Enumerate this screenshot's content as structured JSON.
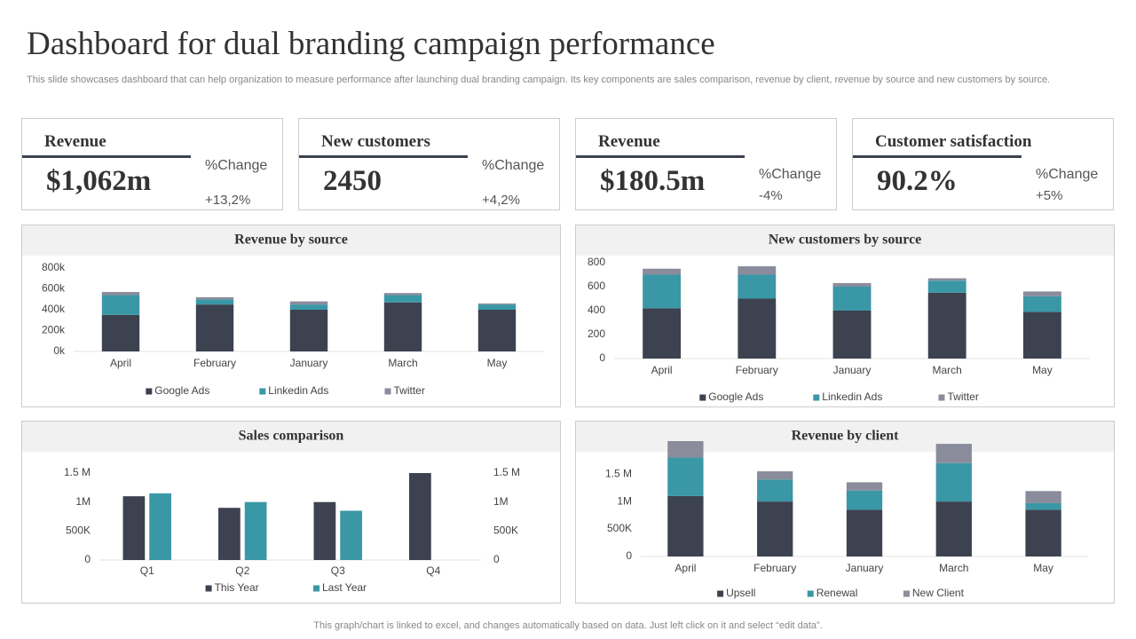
{
  "header": {
    "title": "Dashboard for dual branding campaign performance",
    "subtitle": "This slide showcases dashboard that can help organization to measure performance after launching dual branding campaign. Its key components are sales comparison, revenue by client, revenue by source and new customers by source."
  },
  "cards": [
    {
      "label": "Revenue",
      "value": "$1,062m",
      "change_label": "%Change",
      "change": "+13,2%"
    },
    {
      "label": "New customers",
      "value": "2450",
      "change_label": "%Change",
      "change": "+4,2%"
    },
    {
      "label": "Revenue",
      "value": "$180.5m",
      "change_label": "%Change",
      "change": "-4%"
    },
    {
      "label": "Customer satisfaction",
      "value": "90.2%",
      "change_label": "%Change",
      "change": "+5%"
    }
  ],
  "chart_data": [
    {
      "type": "bar",
      "stacked": true,
      "title": "Revenue by source",
      "categories": [
        "April",
        "February",
        "January",
        "March",
        "May"
      ],
      "series": [
        {
          "name": "Google Ads",
          "color": "#3d4250",
          "values": [
            350000,
            450000,
            400000,
            470000,
            400000
          ]
        },
        {
          "name": "Linkedin Ads",
          "color": "#3a97a6",
          "values": [
            190000,
            50000,
            50000,
            70000,
            50000
          ]
        },
        {
          "name": "Twitter",
          "color": "#8a8c9c",
          "values": [
            30000,
            20000,
            30000,
            20000,
            10000
          ]
        }
      ],
      "ylim": [
        0,
        800000
      ],
      "yticks": [
        {
          "value": 0,
          "label": "0k"
        },
        {
          "value": 200000,
          "label": "200k"
        },
        {
          "value": 400000,
          "label": "400k"
        },
        {
          "value": 600000,
          "label": "600k"
        },
        {
          "value": 800000,
          "label": "800k"
        }
      ]
    },
    {
      "type": "bar",
      "stacked": true,
      "title": "New customers by source",
      "categories": [
        "April",
        "February",
        "January",
        "March",
        "May"
      ],
      "series": [
        {
          "name": "Google Ads",
          "color": "#3d4250",
          "values": [
            420,
            500,
            400,
            550,
            390
          ]
        },
        {
          "name": "Linkedin Ads",
          "color": "#3a97a6",
          "values": [
            280,
            200,
            200,
            100,
            130
          ]
        },
        {
          "name": "Twitter",
          "color": "#8a8c9c",
          "values": [
            50,
            70,
            30,
            20,
            40
          ]
        }
      ],
      "ylim": [
        0,
        800
      ],
      "yticks": [
        0,
        200,
        400,
        600,
        800
      ]
    },
    {
      "type": "bar",
      "stacked": false,
      "title": "Sales comparison",
      "categories": [
        "Q1",
        "Q2",
        "Q3",
        "Q4"
      ],
      "series": [
        {
          "name": "This Year",
          "color": "#3d4250",
          "values": [
            1100000,
            900000,
            1000000,
            1500000
          ]
        },
        {
          "name": "Last Year",
          "color": "#3a97a6",
          "axis": "y2",
          "values": [
            1150000,
            1000000,
            850000,
            null
          ]
        }
      ],
      "ylim": [
        0,
        1600000
      ],
      "yticks": [
        0,
        {
          "value": 500000,
          "label": "500K"
        },
        {
          "value": 1000000,
          "label": "1M"
        },
        {
          "value": 1500000,
          "label": "1.5 M"
        }
      ],
      "y2lim": [
        0,
        1600000
      ],
      "y2ticks": [
        0,
        {
          "value": 500000,
          "label": "500K"
        },
        {
          "value": 1000000,
          "label": "1M"
        },
        {
          "value": 1500000,
          "label": "1.5 M"
        }
      ]
    },
    {
      "type": "bar",
      "stacked": true,
      "title": "Revenue by client",
      "categories": [
        "April",
        "February",
        "January",
        "March",
        "May"
      ],
      "series": [
        {
          "name": "Upsell",
          "color": "#3d4250",
          "values": [
            1100000,
            1000000,
            850000,
            1000000,
            850000
          ]
        },
        {
          "name": "Renewal",
          "color": "#3a97a6",
          "values": [
            700000,
            400000,
            350000,
            700000,
            120000
          ]
        },
        {
          "name": "New Client",
          "color": "#8a8c9c",
          "values": [
            300000,
            150000,
            150000,
            350000,
            220000
          ]
        }
      ],
      "ylim": [
        0,
        2100000
      ],
      "yticks": [
        0,
        {
          "value": 500000,
          "label": "500K"
        },
        {
          "value": 1000000,
          "label": "1M"
        },
        {
          "value": 1500000,
          "label": "1.5 M"
        }
      ]
    }
  ],
  "footer": "This graph/chart is linked to excel,  and changes automatically based on data. Just left click on it and select “edit data”."
}
